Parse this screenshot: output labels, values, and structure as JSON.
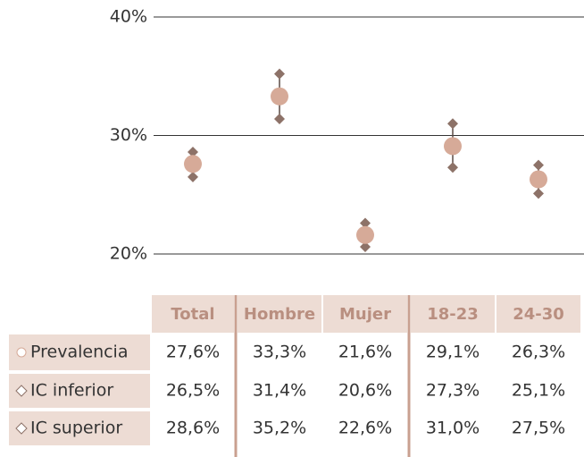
{
  "chart_data": {
    "type": "dot",
    "categories": [
      "Total",
      "Hombre",
      "Mujer",
      "18-23",
      "24-30"
    ],
    "series": [
      {
        "name": "Prevalencia",
        "color": "#d6aa98",
        "values": [
          27.6,
          33.3,
          21.6,
          29.1,
          26.3
        ],
        "value_labels": [
          "27,6%",
          "33,3%",
          "21,6%",
          "29,1%",
          "26,3%"
        ]
      },
      {
        "name": "IC inferior",
        "color": "#8d7268",
        "values": [
          26.5,
          31.4,
          20.6,
          27.3,
          25.1
        ],
        "value_labels": [
          "26,5%",
          "31,4%",
          "20,6%",
          "27,3%",
          "25,1%"
        ]
      },
      {
        "name": "IC superior",
        "color": "#8d7268",
        "values": [
          28.6,
          35.2,
          22.6,
          31.0,
          27.5
        ],
        "value_labels": [
          "28,6%",
          "35,2%",
          "22,6%",
          "31,0%",
          "27,5%"
        ]
      }
    ],
    "ylim": [
      20,
      40
    ],
    "yticks": [
      {
        "value": 20,
        "label": "20%"
      },
      {
        "value": 30,
        "label": "30%"
      },
      {
        "value": 40,
        "label": "40%"
      }
    ],
    "grid": true
  }
}
